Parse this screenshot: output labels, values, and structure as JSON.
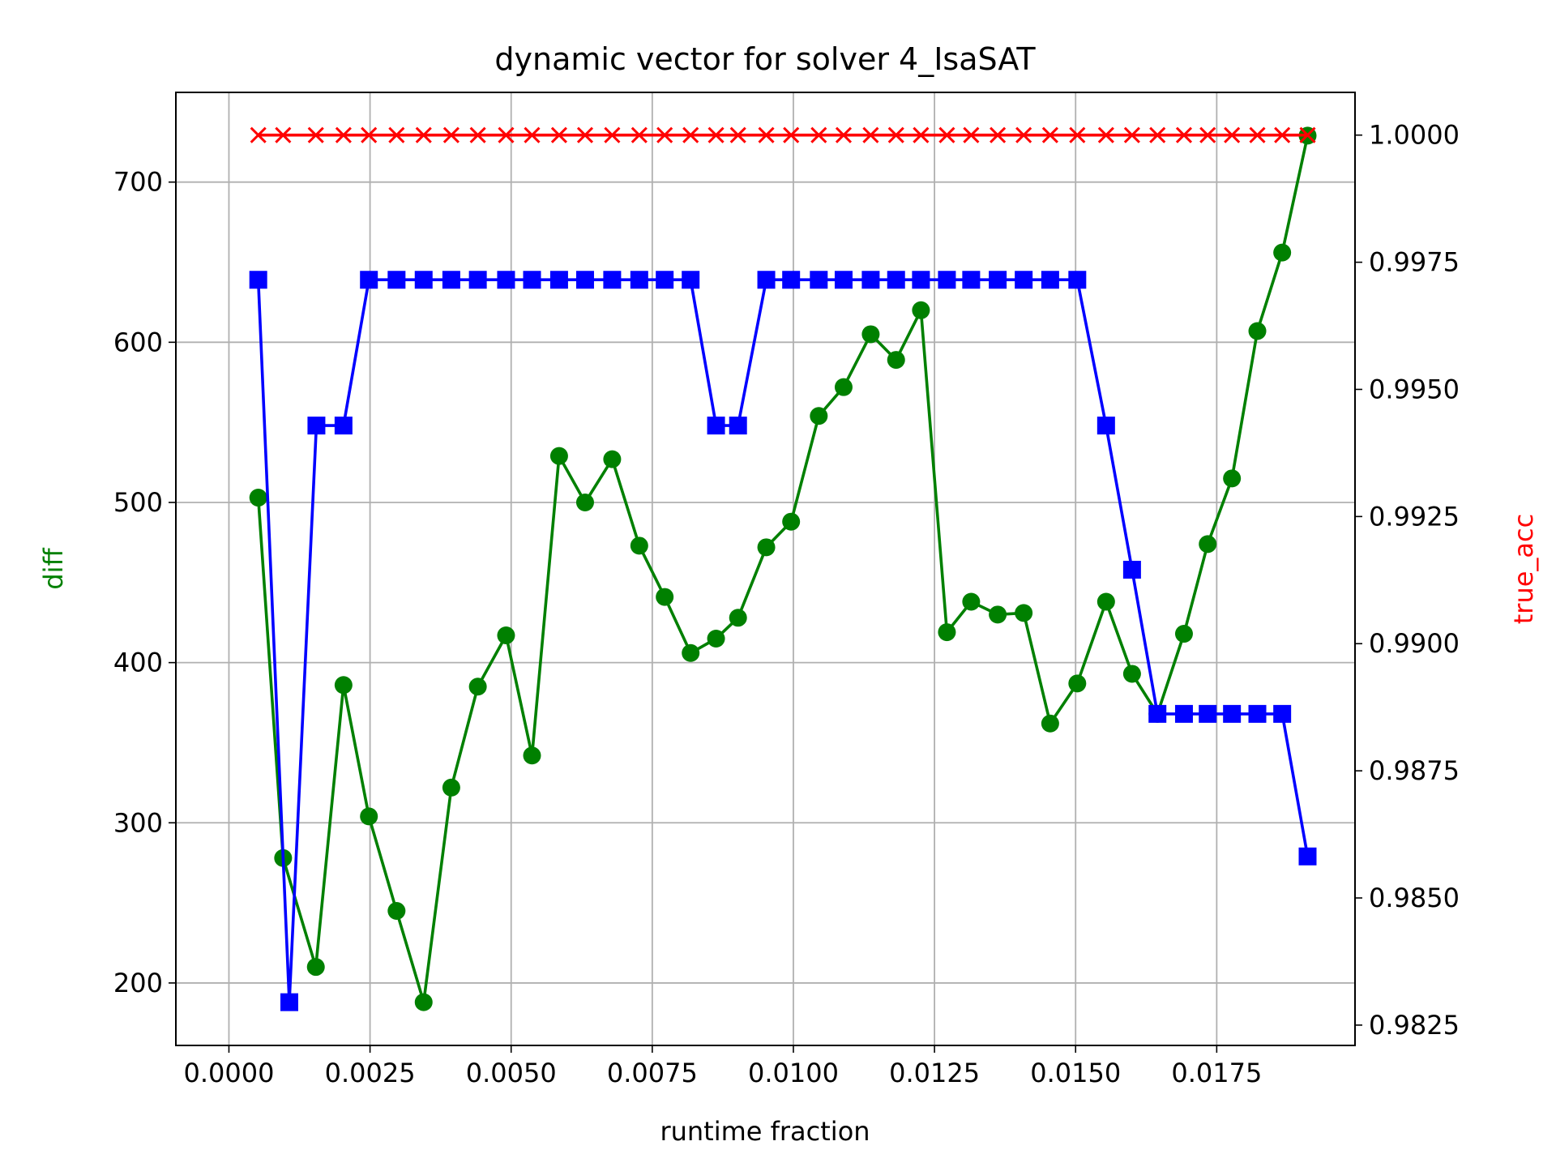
{
  "chart_data": {
    "type": "line",
    "title": "dynamic vector for solver 4_IsaSAT",
    "xlabel": "runtime fraction",
    "ylabel": "diff",
    "ylabel_right": "true_acc",
    "xlim": [
      -0.00094,
      0.01995
    ],
    "ylim": [
      161,
      756
    ],
    "ylim_right": [
      0.9821,
      1.00084
    ],
    "grid": true,
    "x_ticks": [
      0.0,
      0.0025,
      0.005,
      0.0075,
      0.01,
      0.0125,
      0.015,
      0.0175
    ],
    "x_tick_labels": [
      "0.0000",
      "0.0025",
      "0.0050",
      "0.0075",
      "0.0100",
      "0.0125",
      "0.0150",
      "0.0175"
    ],
    "y_ticks": [
      200,
      300,
      400,
      500,
      600,
      700
    ],
    "y_tick_labels": [
      "200",
      "300",
      "400",
      "500",
      "600",
      "700"
    ],
    "y_ticks_right": [
      0.9825,
      0.985,
      0.9875,
      0.99,
      0.9925,
      0.995,
      0.9975,
      1.0
    ],
    "y_tick_labels_right": [
      "0.9825",
      "0.9850",
      "0.9875",
      "0.9900",
      "0.9925",
      "0.9950",
      "0.9975",
      "1.0000"
    ],
    "x": [
      0.00052,
      0.00105,
      0.00157,
      0.0021,
      0.00262,
      0.00314,
      0.00367,
      0.00419,
      0.00472,
      0.00524,
      0.00577,
      0.00629,
      0.00681,
      0.00734,
      0.00786,
      0.00839,
      0.00891,
      0.00943,
      0.00996,
      0.01048,
      0.01101,
      0.01153,
      0.01205,
      0.01258,
      0.0131,
      0.01363,
      0.01415,
      0.01467,
      0.0152,
      0.01572,
      0.01625,
      0.01677,
      0.0173,
      0.01782,
      0.01834,
      0.01887,
      0.01939,
      0.01992
    ],
    "series": [
      {
        "name": "diff",
        "axis": "left",
        "color": "#008000",
        "marker": "circle",
        "x": [
          0.00052,
          0.00096,
          0.00154,
          0.00203,
          0.00248,
          0.00297,
          0.00345,
          0.00394,
          0.00441,
          0.00491,
          0.00537,
          0.00585,
          0.00631,
          0.00679,
          0.00727,
          0.00772,
          0.00818,
          0.00863,
          0.00902,
          0.00952,
          0.00996,
          0.01045,
          0.01089,
          0.01137,
          0.01182,
          0.01226,
          0.01272,
          0.01315,
          0.01362,
          0.01408,
          0.01455,
          0.01503,
          0.01554,
          0.016,
          0.01645,
          0.01692,
          0.01734,
          0.01777,
          0.01822,
          0.01866,
          0.01911
        ],
        "values": [
          503,
          278,
          210,
          386,
          304,
          245,
          188,
          322,
          385,
          417,
          342,
          529,
          500,
          527,
          473,
          441,
          406,
          415,
          428,
          472,
          488,
          554,
          572,
          605,
          589,
          620,
          419,
          438,
          430,
          431,
          362,
          387,
          438,
          393,
          368,
          418,
          474,
          515,
          607,
          656,
          729
        ]
      },
      {
        "name": "blue",
        "axis": "left",
        "color": "#0000ff",
        "marker": "square",
        "x": [
          0.00052,
          0.00107,
          0.00155,
          0.00203,
          0.00248,
          0.00297,
          0.00345,
          0.00394,
          0.00441,
          0.00491,
          0.00537,
          0.00585,
          0.00631,
          0.00679,
          0.00727,
          0.00772,
          0.00818,
          0.00863,
          0.00902,
          0.00952,
          0.00996,
          0.01045,
          0.01089,
          0.01137,
          0.01182,
          0.01226,
          0.01272,
          0.01315,
          0.01362,
          0.01408,
          0.01455,
          0.01503,
          0.01554,
          0.016,
          0.01645,
          0.01692,
          0.01734,
          0.01777,
          0.01822,
          0.01866,
          0.01911
        ],
        "values": [
          639,
          188,
          548,
          548,
          639,
          639,
          639,
          639,
          639,
          639,
          639,
          639,
          639,
          639,
          639,
          639,
          639,
          548,
          548,
          639,
          639,
          639,
          639,
          639,
          639,
          639,
          639,
          639,
          639,
          639,
          639,
          639,
          548,
          458,
          368,
          368,
          368,
          368,
          368,
          368,
          279
        ]
      },
      {
        "name": "true_acc",
        "axis": "right",
        "color": "#ff0000",
        "marker": "x",
        "x": [
          0.00052,
          0.00096,
          0.00154,
          0.00203,
          0.00248,
          0.00297,
          0.00345,
          0.00394,
          0.00441,
          0.00491,
          0.00537,
          0.00585,
          0.00631,
          0.00679,
          0.00727,
          0.00772,
          0.00818,
          0.00863,
          0.00902,
          0.00952,
          0.00996,
          0.01045,
          0.01089,
          0.01137,
          0.01182,
          0.01226,
          0.01272,
          0.01315,
          0.01362,
          0.01408,
          0.01455,
          0.01503,
          0.01554,
          0.016,
          0.01645,
          0.01692,
          0.01734,
          0.01777,
          0.01822,
          0.01866,
          0.01911
        ],
        "values": [
          1.0,
          1.0,
          1.0,
          1.0,
          1.0,
          1.0,
          1.0,
          1.0,
          1.0,
          1.0,
          1.0,
          1.0,
          1.0,
          1.0,
          1.0,
          1.0,
          1.0,
          1.0,
          1.0,
          1.0,
          1.0,
          1.0,
          1.0,
          1.0,
          1.0,
          1.0,
          1.0,
          1.0,
          1.0,
          1.0,
          1.0,
          1.0,
          1.0,
          1.0,
          1.0,
          1.0,
          1.0,
          1.0,
          1.0,
          1.0,
          1.0
        ]
      }
    ]
  }
}
